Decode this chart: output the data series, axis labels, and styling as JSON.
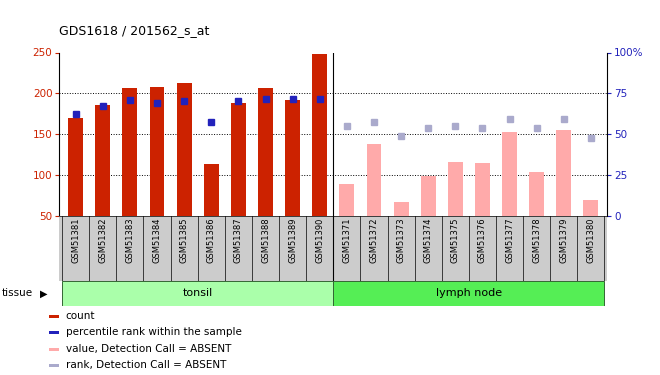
{
  "title": "GDS1618 / 201562_s_at",
  "samples": [
    "GSM51381",
    "GSM51382",
    "GSM51383",
    "GSM51384",
    "GSM51385",
    "GSM51386",
    "GSM51387",
    "GSM51388",
    "GSM51389",
    "GSM51390",
    "GSM51371",
    "GSM51372",
    "GSM51373",
    "GSM51374",
    "GSM51375",
    "GSM51376",
    "GSM51377",
    "GSM51378",
    "GSM51379",
    "GSM51380"
  ],
  "bar_values": [
    170,
    186,
    207,
    208,
    213,
    113,
    188,
    206,
    192,
    248,
    null,
    null,
    null,
    null,
    null,
    null,
    null,
    null,
    null,
    null
  ],
  "bar_absent_values": [
    null,
    null,
    null,
    null,
    null,
    null,
    null,
    null,
    null,
    null,
    89,
    138,
    67,
    98,
    116,
    115,
    152,
    104,
    155,
    69
  ],
  "rank_values": [
    175,
    185,
    192,
    188,
    190,
    165,
    190,
    193,
    193,
    193,
    null,
    null,
    null,
    null,
    null,
    null,
    null,
    null,
    null,
    null
  ],
  "rank_absent_values": [
    null,
    null,
    null,
    null,
    null,
    null,
    null,
    null,
    null,
    null,
    160,
    165,
    148,
    158,
    160,
    157,
    168,
    158,
    168,
    145
  ],
  "tonsil_range": [
    0,
    9
  ],
  "lymph_range": [
    10,
    19
  ],
  "ylim_left": [
    50,
    250
  ],
  "ylim_right": [
    0,
    100
  ],
  "yticks_left": [
    50,
    100,
    150,
    200,
    250
  ],
  "yticks_right": [
    0,
    25,
    50,
    75,
    100
  ],
  "grid_values": [
    100,
    150,
    200
  ],
  "bar_color": "#cc2200",
  "bar_absent_color": "#ffaaaa",
  "rank_color": "#2222bb",
  "rank_absent_color": "#aaaacc",
  "tonsil_color": "#aaffaa",
  "lymph_color": "#55ee55",
  "xtick_bg": "#cccccc",
  "tissue_label": "tissue",
  "tonsil_label": "tonsil",
  "lymph_label": "lymph node",
  "legend_items": [
    {
      "label": "count",
      "color": "#cc2200"
    },
    {
      "label": "percentile rank within the sample",
      "color": "#2222bb"
    },
    {
      "label": "value, Detection Call = ABSENT",
      "color": "#ffaaaa"
    },
    {
      "label": "rank, Detection Call = ABSENT",
      "color": "#aaaacc"
    }
  ],
  "bar_width": 0.55,
  "rank_marker_size": 5
}
